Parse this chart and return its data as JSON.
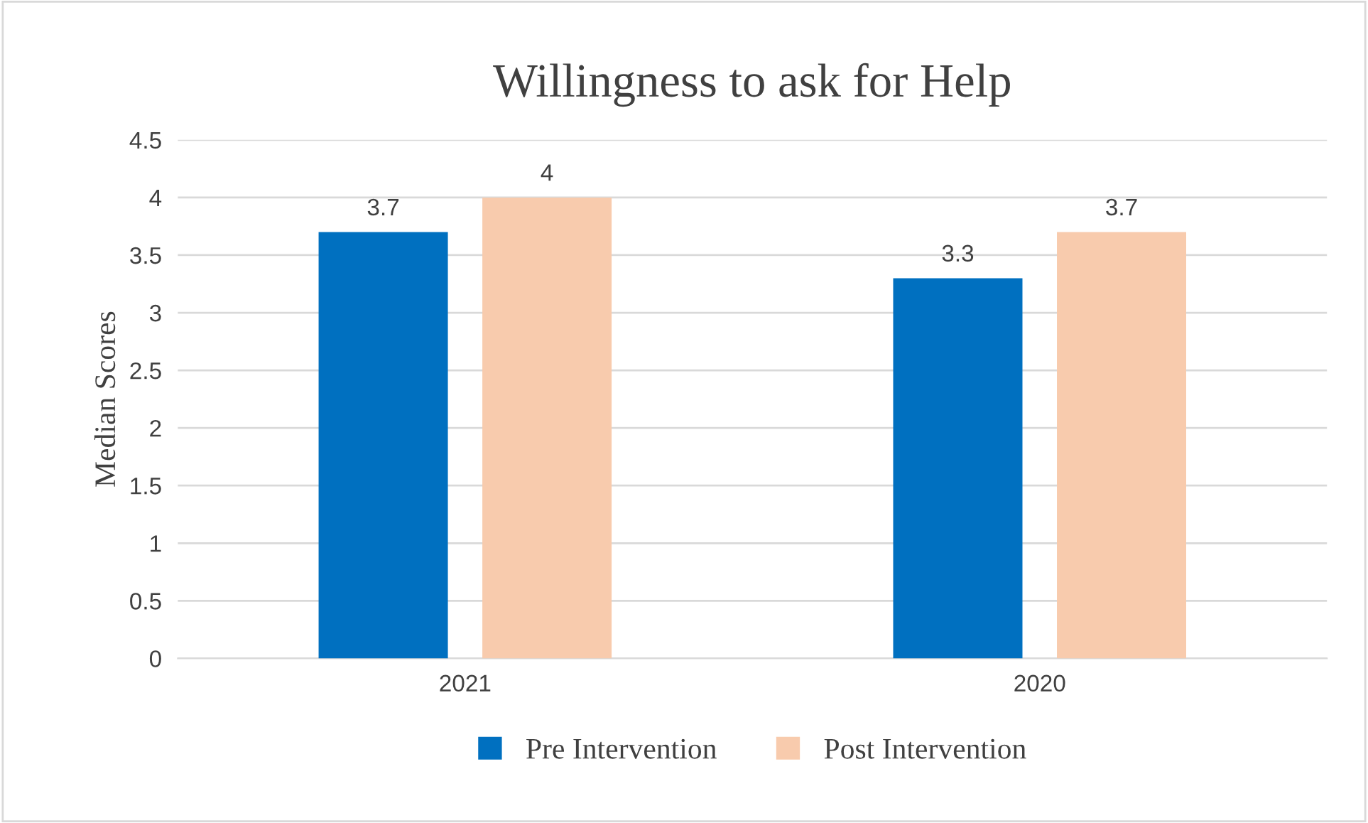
{
  "chart_data": {
    "type": "bar",
    "title": "Willingness to ask for Help",
    "ylabel": "Median Scores",
    "categories": [
      "2021",
      "2020"
    ],
    "series": [
      {
        "name": "Pre Intervention",
        "color": "#0070c0",
        "values": [
          3.7,
          3.3
        ]
      },
      {
        "name": "Post Intervention",
        "color": "#f8cbad",
        "values": [
          4,
          3.7
        ]
      }
    ],
    "ylim": [
      0,
      4.5
    ],
    "yticks": [
      0,
      0.5,
      1,
      1.5,
      2,
      2.5,
      3,
      3.5,
      4,
      4.5
    ],
    "grid": "y",
    "legend": "bottom",
    "data_labels": true
  }
}
